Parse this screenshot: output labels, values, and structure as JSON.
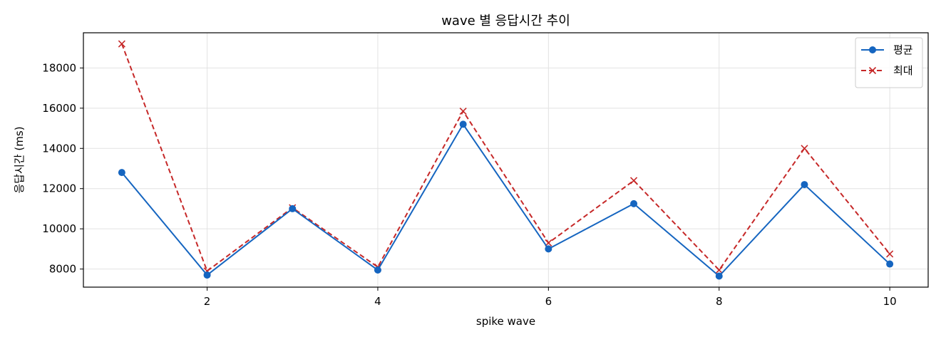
{
  "chart_data": {
    "type": "line",
    "title": "wave 별 응답시간 추이",
    "xlabel": "spike wave",
    "ylabel": "응답시간 (ms)",
    "x": [
      1,
      2,
      3,
      4,
      5,
      6,
      7,
      8,
      9,
      10
    ],
    "xticks": [
      2,
      4,
      6,
      8,
      10
    ],
    "yticks": [
      8000,
      10000,
      12000,
      14000,
      16000,
      18000
    ],
    "xlim": [
      0.55,
      10.45
    ],
    "ylim": [
      7100,
      19750
    ],
    "grid": true,
    "legend_position": "top-right",
    "series": [
      {
        "name": "평균",
        "color": "#1565c0",
        "line_style": "solid",
        "marker": "circle",
        "values": [
          12800,
          7700,
          11000,
          7950,
          15200,
          9000,
          11250,
          7650,
          12200,
          8250
        ]
      },
      {
        "name": "최대",
        "color": "#c62828",
        "line_style": "dashed",
        "marker": "x",
        "values": [
          19200,
          7900,
          11050,
          8100,
          15850,
          9300,
          12400,
          7950,
          14000,
          8750
        ]
      }
    ]
  }
}
